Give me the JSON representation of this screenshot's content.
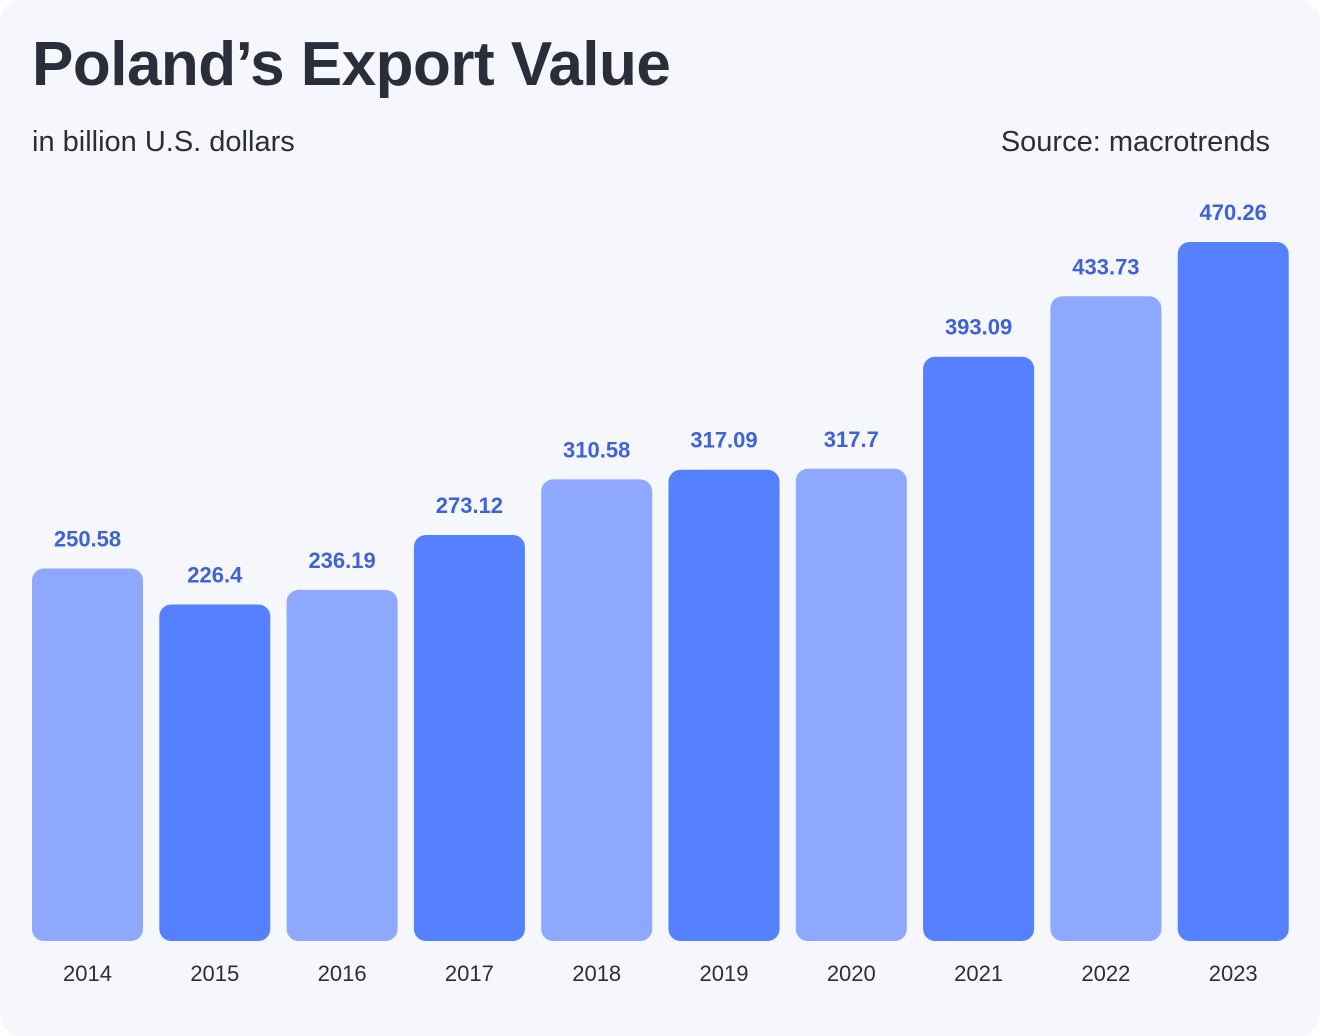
{
  "header": {
    "title": "Poland’s Export Value",
    "subtitle": "in billion U.S. dollars",
    "source": "Source: macrotrends"
  },
  "colors": {
    "light": "#8fa8ff",
    "dark": "#5580ff",
    "value_label": "#3f63d6",
    "background": "#f6f6fd"
  },
  "chart_data": {
    "type": "bar",
    "title": "Poland’s Export Value",
    "subtitle": "in billion U.S. dollars",
    "xlabel": "",
    "ylabel": "",
    "categories": [
      "2014",
      "2015",
      "2016",
      "2017",
      "2018",
      "2019",
      "2020",
      "2021",
      "2022",
      "2023"
    ],
    "values": [
      250.58,
      226.4,
      236.19,
      273.12,
      310.58,
      317.09,
      317.7,
      393.09,
      433.73,
      470.26
    ],
    "value_labels": [
      "250.58",
      "226.4",
      "236.19",
      "273.12",
      "310.58",
      "317.09",
      "317.7",
      "393.09",
      "433.73",
      "470.26"
    ],
    "bar_shades": [
      "light",
      "dark",
      "light",
      "dark",
      "light",
      "dark",
      "light",
      "dark",
      "light",
      "dark"
    ],
    "ylim": [
      0,
      470.26
    ],
    "grid": false,
    "legend": "none"
  }
}
